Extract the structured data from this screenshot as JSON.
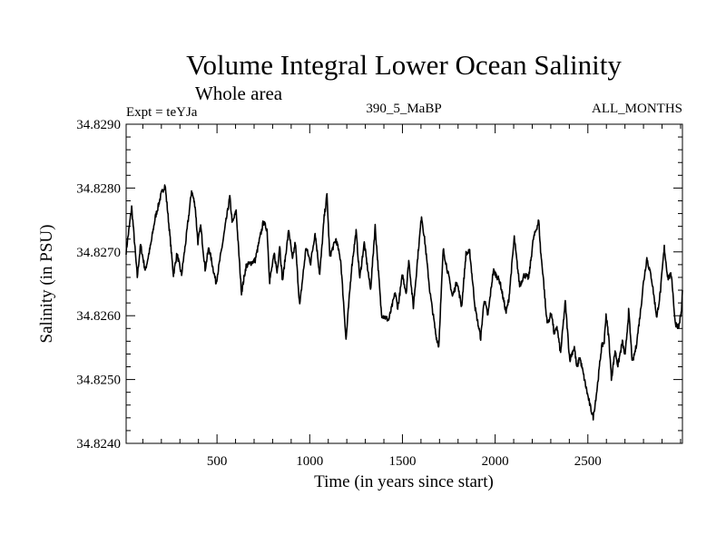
{
  "chart_data": {
    "type": "line",
    "title": "Volume Integral Lower Ocean Salinity",
    "subtitle": "Whole area",
    "annotations": {
      "left": "Expt = teYJa",
      "center": "390_5_MaBP",
      "right": "ALL_MONTHS"
    },
    "xlabel": "Time (in years since start)",
    "ylabel": "Salinity (in PSU)",
    "xlim": [
      10,
      3010
    ],
    "ylim": [
      34.824,
      34.829
    ],
    "x_ticks": [
      500,
      1000,
      1500,
      2000,
      2500
    ],
    "x_tick_labels": [
      "500",
      "1000",
      "1500",
      "2000",
      "2500"
    ],
    "x_minor_step": 100,
    "y_ticks": [
      34.824,
      34.825,
      34.826,
      34.827,
      34.828,
      34.829
    ],
    "y_tick_labels": [
      "34.8240",
      "34.8250",
      "34.8260",
      "34.8270",
      "34.8280",
      "34.8290"
    ],
    "y_minor_step": 0.0002,
    "grid": false,
    "legend": "none",
    "line_color": "#000000",
    "series": [
      {
        "name": "Lower ocean salinity",
        "x": [
          10,
          40,
          70,
          88,
          113,
          142,
          167,
          200,
          220,
          240,
          265,
          284,
          309,
          333,
          363,
          382,
          397,
          412,
          436,
          456,
          495,
          529,
          569,
          583,
          603,
          632,
          657,
          706,
          750,
          770,
          784,
          809,
          824,
          838,
          853,
          887,
          907,
          922,
          946,
          980,
          1005,
          1029,
          1054,
          1078,
          1093,
          1108,
          1142,
          1167,
          1196,
          1225,
          1250,
          1270,
          1294,
          1328,
          1353,
          1387,
          1426,
          1461,
          1475,
          1500,
          1520,
          1534,
          1559,
          1583,
          1603,
          1623,
          1647,
          1681,
          1696,
          1720,
          1745,
          1770,
          1794,
          1819,
          1843,
          1863,
          1892,
          1922,
          1941,
          1961,
          1990,
          2025,
          2059,
          2074,
          2103,
          2132,
          2157,
          2181,
          2206,
          2235,
          2245,
          2260,
          2275,
          2284,
          2304,
          2319,
          2333,
          2353,
          2378,
          2392,
          2402,
          2427,
          2441,
          2456,
          2480,
          2500,
          2515,
          2529,
          2549,
          2574,
          2588,
          2598,
          2613,
          2627,
          2647,
          2662,
          2686,
          2701,
          2720,
          2740,
          2760,
          2784,
          2799,
          2818,
          2843,
          2872,
          2892,
          2912,
          2931,
          2951,
          2971,
          2990,
          3005,
          3010
        ],
        "y": [
          34.827,
          34.8277,
          34.82661,
          34.82711,
          34.8267,
          34.8271,
          34.82754,
          34.82791,
          34.82805,
          34.82744,
          34.82664,
          34.82697,
          34.82664,
          34.8272,
          34.82796,
          34.82772,
          34.82715,
          34.8274,
          34.82673,
          34.82707,
          34.82651,
          34.82711,
          34.82786,
          34.82744,
          34.82764,
          34.82636,
          34.82678,
          34.82687,
          34.82747,
          34.82735,
          34.82654,
          34.82697,
          34.82668,
          34.82711,
          34.82654,
          34.82735,
          34.82687,
          34.82715,
          34.82616,
          34.82707,
          34.82683,
          34.8273,
          34.82664,
          34.82754,
          34.82789,
          34.82693,
          34.8272,
          34.82687,
          34.82562,
          34.82673,
          34.82732,
          34.82659,
          34.82714,
          34.8264,
          34.8274,
          34.82602,
          34.82593,
          34.82636,
          34.82612,
          34.82664,
          34.82636,
          34.82687,
          34.82614,
          34.82693,
          34.82757,
          34.82711,
          34.8264,
          34.82569,
          34.82552,
          34.82704,
          34.82668,
          34.8263,
          34.82654,
          34.82614,
          34.82697,
          34.827,
          34.82612,
          34.82565,
          34.82626,
          34.826,
          34.82671,
          34.82654,
          34.82605,
          34.82626,
          34.82722,
          34.82647,
          34.82664,
          34.82659,
          34.8272,
          34.82749,
          34.82701,
          34.82659,
          34.82602,
          34.82588,
          34.82605,
          34.82569,
          34.82583,
          34.82541,
          34.82622,
          34.82569,
          34.82531,
          34.82551,
          34.82517,
          34.82536,
          34.82502,
          34.82474,
          34.82455,
          34.82441,
          34.82484,
          34.82551,
          34.82559,
          34.82602,
          34.82565,
          34.82502,
          34.82545,
          34.82522,
          34.82559,
          34.82536,
          34.82607,
          34.82526,
          34.82551,
          34.82607,
          34.8265,
          34.8269,
          34.82659,
          34.82597,
          34.8264,
          34.82707,
          34.82659,
          34.82664,
          34.82588,
          34.82583,
          34.82607,
          34.8264
        ]
      }
    ]
  }
}
